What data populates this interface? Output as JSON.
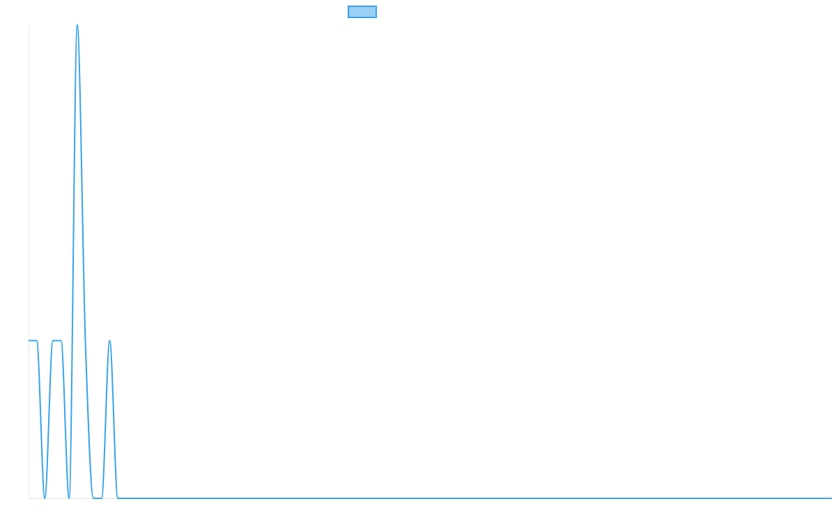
{
  "chart_data": {
    "type": "line",
    "title": "",
    "xlabel": "",
    "ylabel": "",
    "grid": false,
    "legend": {
      "position": "top-center",
      "entries": [
        {
          "label": "",
          "color": "#36a2eb",
          "fill": "#9ad0f5"
        }
      ]
    },
    "ylim": [
      0,
      3
    ],
    "series": [
      {
        "name": "",
        "color": "#36a2eb",
        "values": [
          1,
          1,
          0,
          1,
          1,
          0,
          3,
          1,
          0,
          0,
          1,
          0,
          0,
          0,
          0,
          0,
          0,
          0,
          0,
          0,
          0,
          0,
          0,
          0,
          0,
          0,
          0,
          0,
          0,
          0,
          0,
          0,
          0,
          0,
          0,
          0,
          0,
          0,
          0,
          0,
          0,
          0,
          0,
          0,
          0,
          0,
          0,
          0,
          0,
          0,
          0,
          0,
          0,
          0,
          0,
          0,
          0,
          0,
          0,
          0,
          0,
          0,
          0,
          0,
          0,
          0,
          0,
          0,
          0,
          0,
          0,
          0,
          0,
          0,
          0,
          0,
          0,
          0,
          0,
          0,
          0,
          0,
          0,
          0,
          0,
          0,
          0,
          0,
          0,
          0,
          0,
          0,
          0,
          0,
          0,
          0,
          0,
          0,
          0,
          0
        ]
      }
    ]
  },
  "colors": {
    "line": "#36a2eb",
    "legend_fill": "#9ad0f5",
    "axis": "#e5e5e5",
    "background": "#ffffff"
  }
}
